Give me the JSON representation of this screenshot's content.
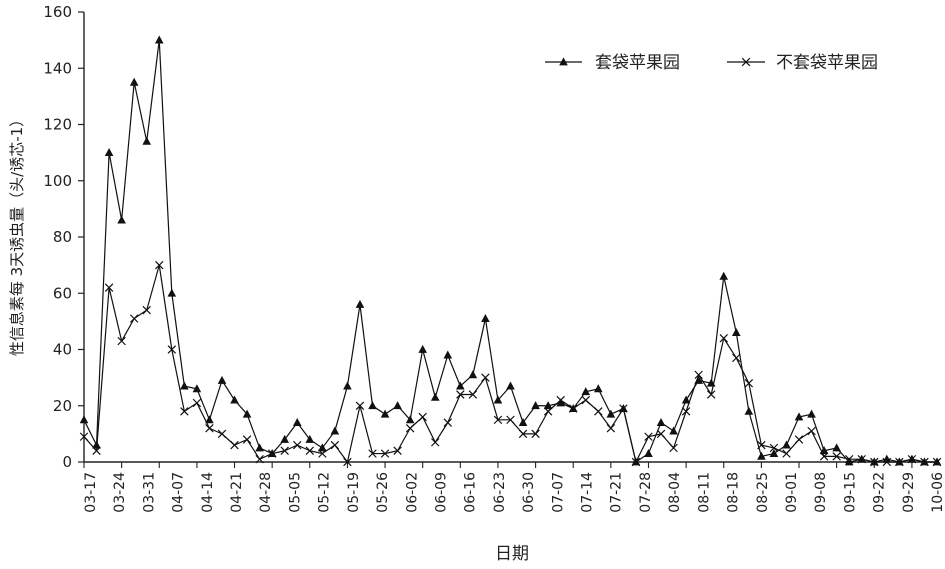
{
  "chart_data": {
    "type": "line",
    "title": "",
    "xlabel": "日期",
    "ylabel": "性信息素每 3天诱虫量（头/诱芯-1）",
    "ylim": [
      0,
      160
    ],
    "yticks": [
      0,
      20,
      40,
      60,
      80,
      100,
      120,
      140,
      160
    ],
    "x_tick_labels": [
      "03-17",
      "03-24",
      "03-31",
      "04-07",
      "04-14",
      "04-21",
      "04-28",
      "05-05",
      "05-12",
      "05-19",
      "05-26",
      "06-02",
      "06-09",
      "06-16",
      "06-23",
      "06-30",
      "07-07",
      "07-14",
      "07-21",
      "07-28",
      "08-04",
      "08-11",
      "08-18",
      "08-25",
      "09-01",
      "09-08",
      "09-15",
      "09-22",
      "09-29",
      "10-06"
    ],
    "legend": "top-right",
    "grid": false,
    "series": [
      {
        "name": "套袋苹果园",
        "marker": "triangle",
        "values": [
          15,
          6,
          110,
          86,
          135,
          114,
          150,
          60,
          27,
          26,
          15,
          29,
          22,
          17,
          5,
          3,
          8,
          14,
          8,
          5,
          11,
          27,
          56,
          20,
          17,
          20,
          15,
          40,
          23,
          38,
          27,
          31,
          51,
          22,
          27,
          14,
          20,
          20,
          21,
          19,
          25,
          26,
          17,
          19,
          0,
          3,
          14,
          11,
          22,
          29,
          28,
          66,
          46,
          18,
          2,
          3,
          6,
          16,
          17,
          4,
          5,
          0,
          1,
          0,
          1,
          0,
          1,
          0,
          0
        ]
      },
      {
        "name": "不套袋苹果园",
        "marker": "x",
        "values": [
          9,
          4,
          62,
          43,
          51,
          54,
          70,
          40,
          18,
          21,
          12,
          10,
          6,
          8,
          1,
          3,
          4,
          6,
          4,
          3,
          6,
          0,
          20,
          3,
          3,
          4,
          12,
          16,
          7,
          14,
          24,
          24,
          30,
          15,
          15,
          10,
          10,
          18,
          22,
          19,
          22,
          18,
          12,
          19,
          0,
          9,
          10,
          5,
          18,
          31,
          24,
          44,
          37,
          28,
          6,
          5,
          3,
          8,
          11,
          2,
          2,
          1,
          1,
          0,
          0,
          0,
          1,
          0,
          0
        ]
      }
    ]
  }
}
